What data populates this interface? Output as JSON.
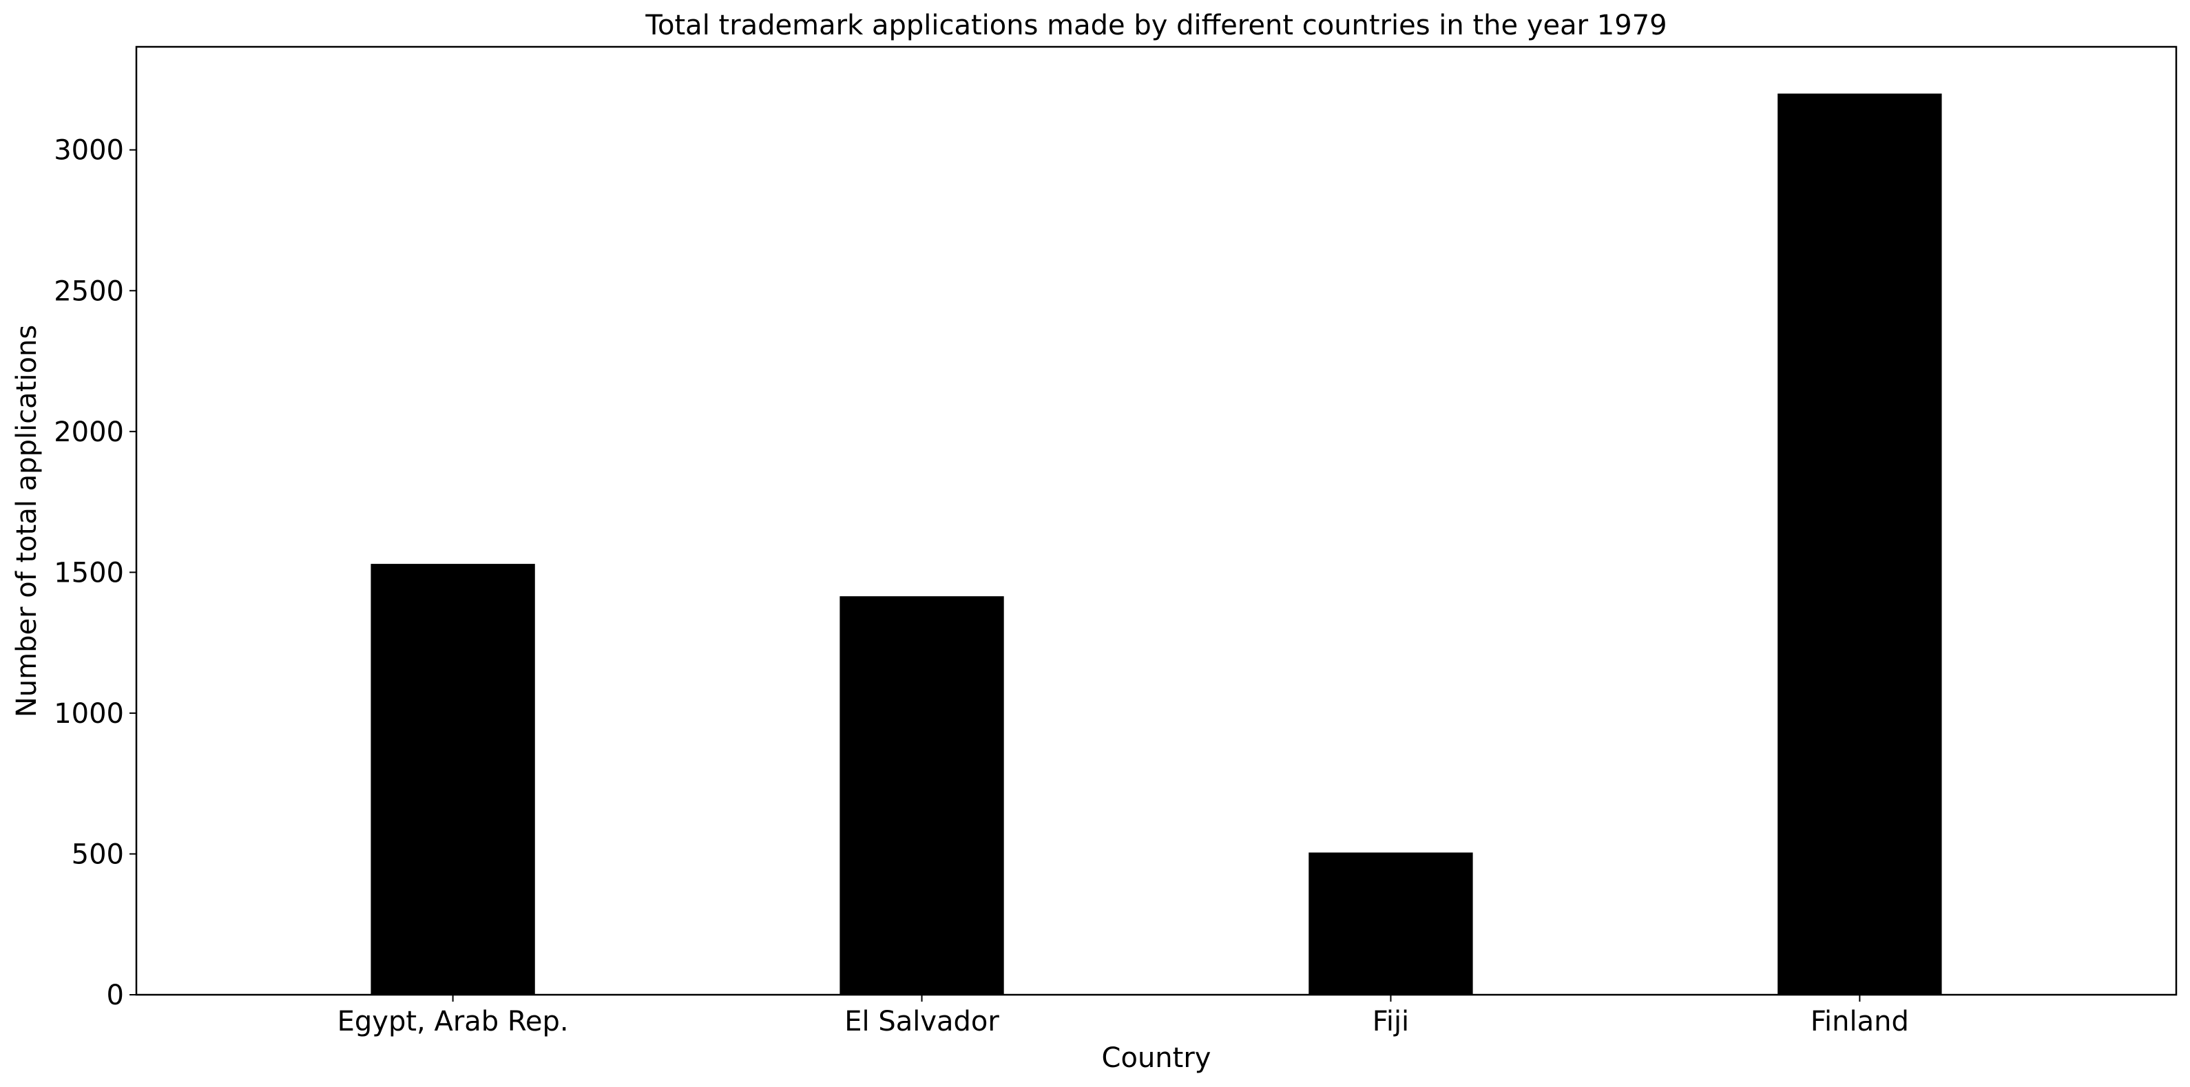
{
  "chart_data": {
    "type": "bar",
    "title": "Total trademark applications made by different countries in the year 1979",
    "xlabel": "Country",
    "ylabel": "Number of total applications",
    "categories": [
      "Egypt, Arab Rep.",
      "El Salvador",
      "Fiji",
      "Finland"
    ],
    "values": [
      1530,
      1415,
      505,
      3200
    ],
    "ylim": [
      0,
      3366
    ],
    "yticks": [
      0,
      500,
      1000,
      1500,
      2000,
      2500,
      3000
    ],
    "grid": false,
    "legend": "none",
    "bar_color": "#000000"
  }
}
